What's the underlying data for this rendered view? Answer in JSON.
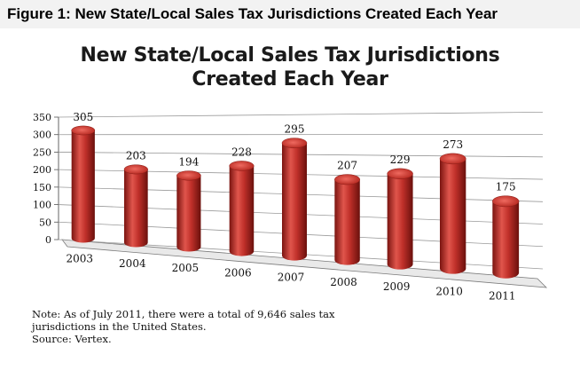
{
  "figure_caption": "Figure 1: New State/Local Sales Tax Jurisdictions Created Each Year",
  "chart_data": {
    "type": "bar",
    "title_line1": "New State/Local Sales Tax Jurisdictions",
    "title_line2": "Created Each Year",
    "categories": [
      "2003",
      "2004",
      "2005",
      "2006",
      "2007",
      "2008",
      "2009",
      "2010",
      "2011"
    ],
    "values": [
      305,
      203,
      194,
      228,
      295,
      207,
      229,
      273,
      175
    ],
    "data_labels": [
      "305",
      "203",
      "194",
      "228",
      "295",
      "207",
      "229",
      "273",
      "175"
    ],
    "y_ticks": [
      "0",
      "50",
      "100",
      "150",
      "200",
      "250",
      "300",
      "350"
    ],
    "ylim": [
      0,
      350
    ],
    "grid": true,
    "legend": "none",
    "style": "3d-cylinder",
    "bar_color": "#c8302a"
  },
  "note": {
    "line1": "Note: As of July 2011, there were a total of 9,646 sales tax",
    "line2": "jurisdictions in the United States.",
    "source": "Source: Vertex."
  }
}
